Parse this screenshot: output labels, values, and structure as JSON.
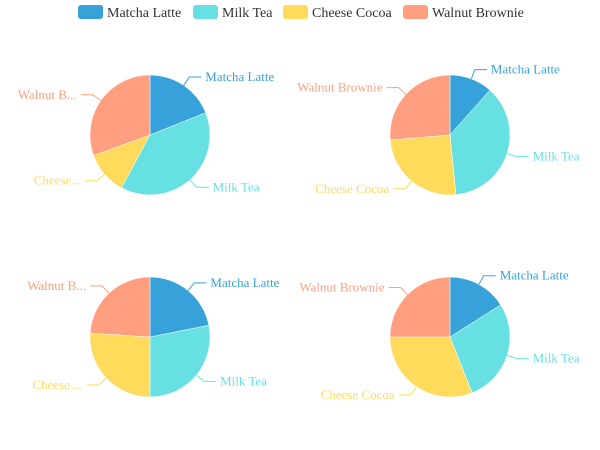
{
  "chart_data": {
    "type": "pie",
    "legend": {
      "placement": "top-center",
      "items": [
        {
          "name": "Matcha Latte",
          "color": "#37a2da"
        },
        {
          "name": "Milk Tea",
          "color": "#67e0e3"
        },
        {
          "name": "Cheese Cocoa",
          "color": "#ffdb5c"
        },
        {
          "name": "Walnut Brownie",
          "color": "#ff9f7f"
        }
      ]
    },
    "pies": [
      {
        "categories": [
          "Matcha Latte",
          "Milk Tea",
          "Cheese Cocoa",
          "Walnut Brownie"
        ],
        "values": [
          18,
          37,
          11,
          29
        ],
        "labels": [
          "Matcha Latte",
          "Milk Tea",
          "Cheese...",
          "Walnut B..."
        ]
      },
      {
        "categories": [
          "Matcha Latte",
          "Milk Tea",
          "Cheese Cocoa",
          "Walnut Brownie"
        ],
        "values": [
          11,
          35,
          24,
          25
        ],
        "labels": [
          "Matcha Latte",
          "Milk Tea",
          "Cheese Cocoa",
          "Walnut Brownie"
        ]
      },
      {
        "categories": [
          "Matcha Latte",
          "Milk Tea",
          "Cheese Cocoa",
          "Walnut Brownie"
        ],
        "values": [
          21,
          27,
          25,
          23
        ],
        "labels": [
          "Matcha Latte",
          "Milk Tea",
          "Cheese ...",
          "Walnut B..."
        ]
      },
      {
        "categories": [
          "Matcha Latte",
          "Milk Tea",
          "Cheese Cocoa",
          "Walnut Brownie"
        ],
        "values": [
          16,
          28,
          31,
          25
        ],
        "labels": [
          "Matcha Latte",
          "Milk Tea",
          "Cheese Cocoa",
          "Walnut Brownie"
        ]
      }
    ]
  }
}
